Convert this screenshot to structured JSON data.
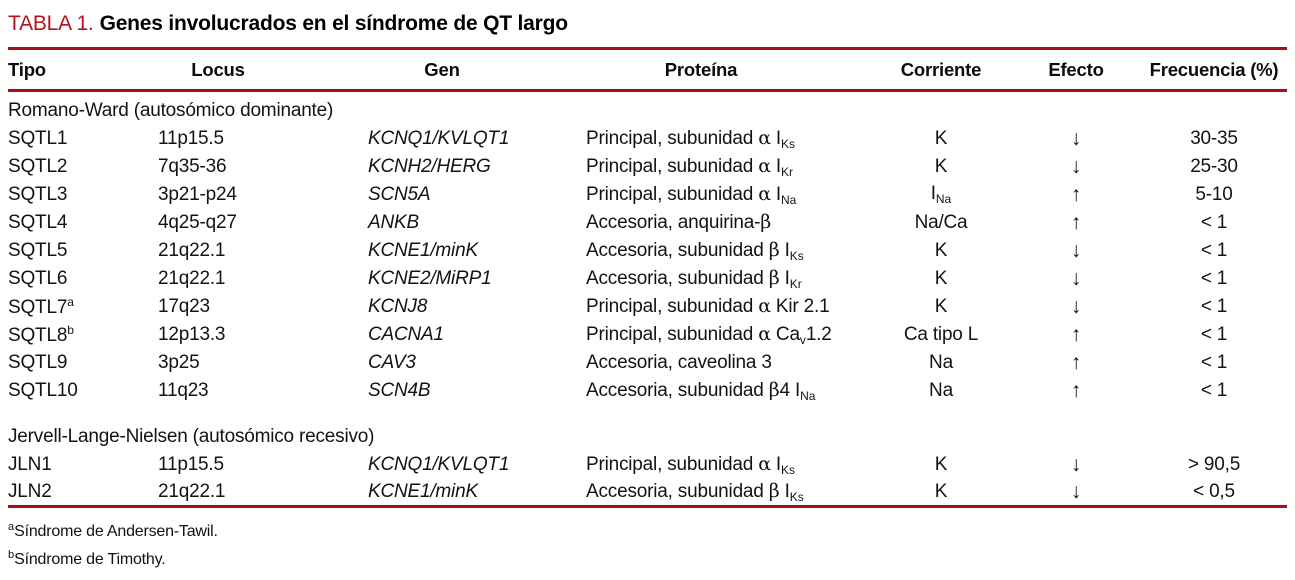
{
  "colors": {
    "title_red": "#b5121e",
    "rule_red": "#a31018",
    "text": "#131313"
  },
  "table": {
    "title_label": "TABLA 1.",
    "title_text": "Genes involucrados en el síndrome de QT largo",
    "columns": [
      {
        "key": "tipo",
        "label": "Tipo"
      },
      {
        "key": "locus",
        "label": "Locus"
      },
      {
        "key": "gen",
        "label": "Gen"
      },
      {
        "key": "proteina",
        "label": "Proteína"
      },
      {
        "key": "corriente",
        "label": "Corriente"
      },
      {
        "key": "efecto",
        "label": "Efecto"
      },
      {
        "key": "frecuencia",
        "label": "Frecuencia (%)"
      }
    ],
    "sections": [
      {
        "name": "Romano-Ward (autosómico dominante)",
        "rows": [
          {
            "tipo": [
              {
                "t": "SQTL1"
              }
            ],
            "locus": [
              {
                "t": "11p15.5"
              }
            ],
            "gen": [
              {
                "t": "KCNQ1/KVLQT1"
              }
            ],
            "proteina": [
              {
                "t": "Principal, subunidad "
              },
              {
                "t": "α",
                "s": "g"
              },
              {
                "t": " I"
              },
              {
                "t": "Ks",
                "s": "sub"
              }
            ],
            "corriente": [
              {
                "t": "K"
              }
            ],
            "efecto": [
              {
                "t": "↓"
              }
            ],
            "frecuencia": [
              {
                "t": "30-35"
              }
            ]
          },
          {
            "tipo": [
              {
                "t": "SQTL2"
              }
            ],
            "locus": [
              {
                "t": "7q35-36"
              }
            ],
            "gen": [
              {
                "t": "KCNH2/HERG"
              }
            ],
            "proteina": [
              {
                "t": "Principal, subunidad "
              },
              {
                "t": "α",
                "s": "g"
              },
              {
                "t": " I"
              },
              {
                "t": "Kr",
                "s": "sub"
              }
            ],
            "corriente": [
              {
                "t": "K"
              }
            ],
            "efecto": [
              {
                "t": "↓"
              }
            ],
            "frecuencia": [
              {
                "t": "25-30"
              }
            ]
          },
          {
            "tipo": [
              {
                "t": "SQTL3"
              }
            ],
            "locus": [
              {
                "t": "3p21-p24"
              }
            ],
            "gen": [
              {
                "t": "SCN5A"
              }
            ],
            "proteina": [
              {
                "t": "Principal, subunidad "
              },
              {
                "t": "α",
                "s": "g"
              },
              {
                "t": " I"
              },
              {
                "t": "Na",
                "s": "sub"
              }
            ],
            "corriente": [
              {
                "t": "I"
              },
              {
                "t": "Na",
                "s": "sub"
              }
            ],
            "efecto": [
              {
                "t": "↑"
              }
            ],
            "frecuencia": [
              {
                "t": "5-10"
              }
            ]
          },
          {
            "tipo": [
              {
                "t": "SQTL4"
              }
            ],
            "locus": [
              {
                "t": "4q25-q27"
              }
            ],
            "gen": [
              {
                "t": "ANKB"
              }
            ],
            "proteina": [
              {
                "t": "Accesoria, anquirina-"
              },
              {
                "t": "β",
                "s": "g"
              }
            ],
            "corriente": [
              {
                "t": "Na/Ca"
              }
            ],
            "efecto": [
              {
                "t": "↑"
              }
            ],
            "frecuencia": [
              {
                "t": "< 1"
              }
            ]
          },
          {
            "tipo": [
              {
                "t": "SQTL5"
              }
            ],
            "locus": [
              {
                "t": "21q22.1"
              }
            ],
            "gen": [
              {
                "t": "KCNE1/minK"
              }
            ],
            "proteina": [
              {
                "t": "Accesoria, subunidad "
              },
              {
                "t": "β",
                "s": "g"
              },
              {
                "t": " I"
              },
              {
                "t": "Ks",
                "s": "sub"
              }
            ],
            "corriente": [
              {
                "t": "K"
              }
            ],
            "efecto": [
              {
                "t": "↓"
              }
            ],
            "frecuencia": [
              {
                "t": "< 1"
              }
            ]
          },
          {
            "tipo": [
              {
                "t": "SQTL6"
              }
            ],
            "locus": [
              {
                "t": "21q22.1"
              }
            ],
            "gen": [
              {
                "t": "KCNE2/MiRP1"
              }
            ],
            "proteina": [
              {
                "t": "Accesoria, subunidad "
              },
              {
                "t": "β",
                "s": "g"
              },
              {
                "t": " I"
              },
              {
                "t": "Kr",
                "s": "sub"
              }
            ],
            "corriente": [
              {
                "t": "K"
              }
            ],
            "efecto": [
              {
                "t": "↓"
              }
            ],
            "frecuencia": [
              {
                "t": "< 1"
              }
            ]
          },
          {
            "tipo": [
              {
                "t": "SQTL7"
              },
              {
                "t": "a",
                "s": "sup"
              }
            ],
            "locus": [
              {
                "t": "17q23"
              }
            ],
            "gen": [
              {
                "t": "KCNJ8"
              }
            ],
            "proteina": [
              {
                "t": "Principal, subunidad "
              },
              {
                "t": "α",
                "s": "g"
              },
              {
                "t": " Kir 2.1"
              }
            ],
            "corriente": [
              {
                "t": "K"
              }
            ],
            "efecto": [
              {
                "t": "↓"
              }
            ],
            "frecuencia": [
              {
                "t": "< 1"
              }
            ]
          },
          {
            "tipo": [
              {
                "t": "SQTL8"
              },
              {
                "t": "b",
                "s": "sup"
              }
            ],
            "locus": [
              {
                "t": "12p13.3"
              }
            ],
            "gen": [
              {
                "t": "CACNA1"
              }
            ],
            "proteina": [
              {
                "t": "Principal, subunidad "
              },
              {
                "t": "α",
                "s": "g"
              },
              {
                "t": " Ca"
              },
              {
                "t": "v",
                "s": "sub"
              },
              {
                "t": "1.2"
              }
            ],
            "corriente": [
              {
                "t": "Ca tipo L"
              }
            ],
            "efecto": [
              {
                "t": "↑"
              }
            ],
            "frecuencia": [
              {
                "t": "< 1"
              }
            ]
          },
          {
            "tipo": [
              {
                "t": "SQTL9"
              }
            ],
            "locus": [
              {
                "t": "3p25"
              }
            ],
            "gen": [
              {
                "t": "CAV3"
              }
            ],
            "proteina": [
              {
                "t": "Accesoria, caveolina 3"
              }
            ],
            "corriente": [
              {
                "t": "Na"
              }
            ],
            "efecto": [
              {
                "t": "↑"
              }
            ],
            "frecuencia": [
              {
                "t": "< 1"
              }
            ]
          },
          {
            "tipo": [
              {
                "t": "SQTL10"
              }
            ],
            "locus": [
              {
                "t": "11q23"
              }
            ],
            "gen": [
              {
                "t": "SCN4B"
              }
            ],
            "proteina": [
              {
                "t": "Accesoria, subunidad "
              },
              {
                "t": "β",
                "s": "g"
              },
              {
                "t": "4 I"
              },
              {
                "t": "Na",
                "s": "sub"
              }
            ],
            "corriente": [
              {
                "t": "Na"
              }
            ],
            "efecto": [
              {
                "t": "↑"
              }
            ],
            "frecuencia": [
              {
                "t": "< 1"
              }
            ]
          }
        ]
      },
      {
        "name": "Jervell-Lange-Nielsen (autosómico recesivo)",
        "rows": [
          {
            "tipo": [
              {
                "t": "JLN1"
              }
            ],
            "locus": [
              {
                "t": "11p15.5"
              }
            ],
            "gen": [
              {
                "t": "KCNQ1/KVLQT1"
              }
            ],
            "proteina": [
              {
                "t": "Principal, subunidad "
              },
              {
                "t": "α",
                "s": "g"
              },
              {
                "t": " I"
              },
              {
                "t": "Ks",
                "s": "sub"
              }
            ],
            "corriente": [
              {
                "t": "K"
              }
            ],
            "efecto": [
              {
                "t": "↓"
              }
            ],
            "frecuencia": [
              {
                "t": "> 90,5"
              }
            ]
          },
          {
            "tipo": [
              {
                "t": "JLN2"
              }
            ],
            "locus": [
              {
                "t": "21q22.1"
              }
            ],
            "gen": [
              {
                "t": "KCNE1/minK"
              }
            ],
            "proteina": [
              {
                "t": "Accesoria, subunidad "
              },
              {
                "t": "β",
                "s": "g"
              },
              {
                "t": " I"
              },
              {
                "t": "Ks",
                "s": "sub"
              }
            ],
            "corriente": [
              {
                "t": "K"
              }
            ],
            "efecto": [
              {
                "t": "↓"
              }
            ],
            "frecuencia": [
              {
                "t": "< 0,5"
              }
            ]
          }
        ]
      }
    ],
    "footnotes": [
      {
        "marker": "a",
        "text": "Síndrome de Andersen-Tawil."
      },
      {
        "marker": "b",
        "text": "Síndrome de Timothy."
      }
    ]
  }
}
